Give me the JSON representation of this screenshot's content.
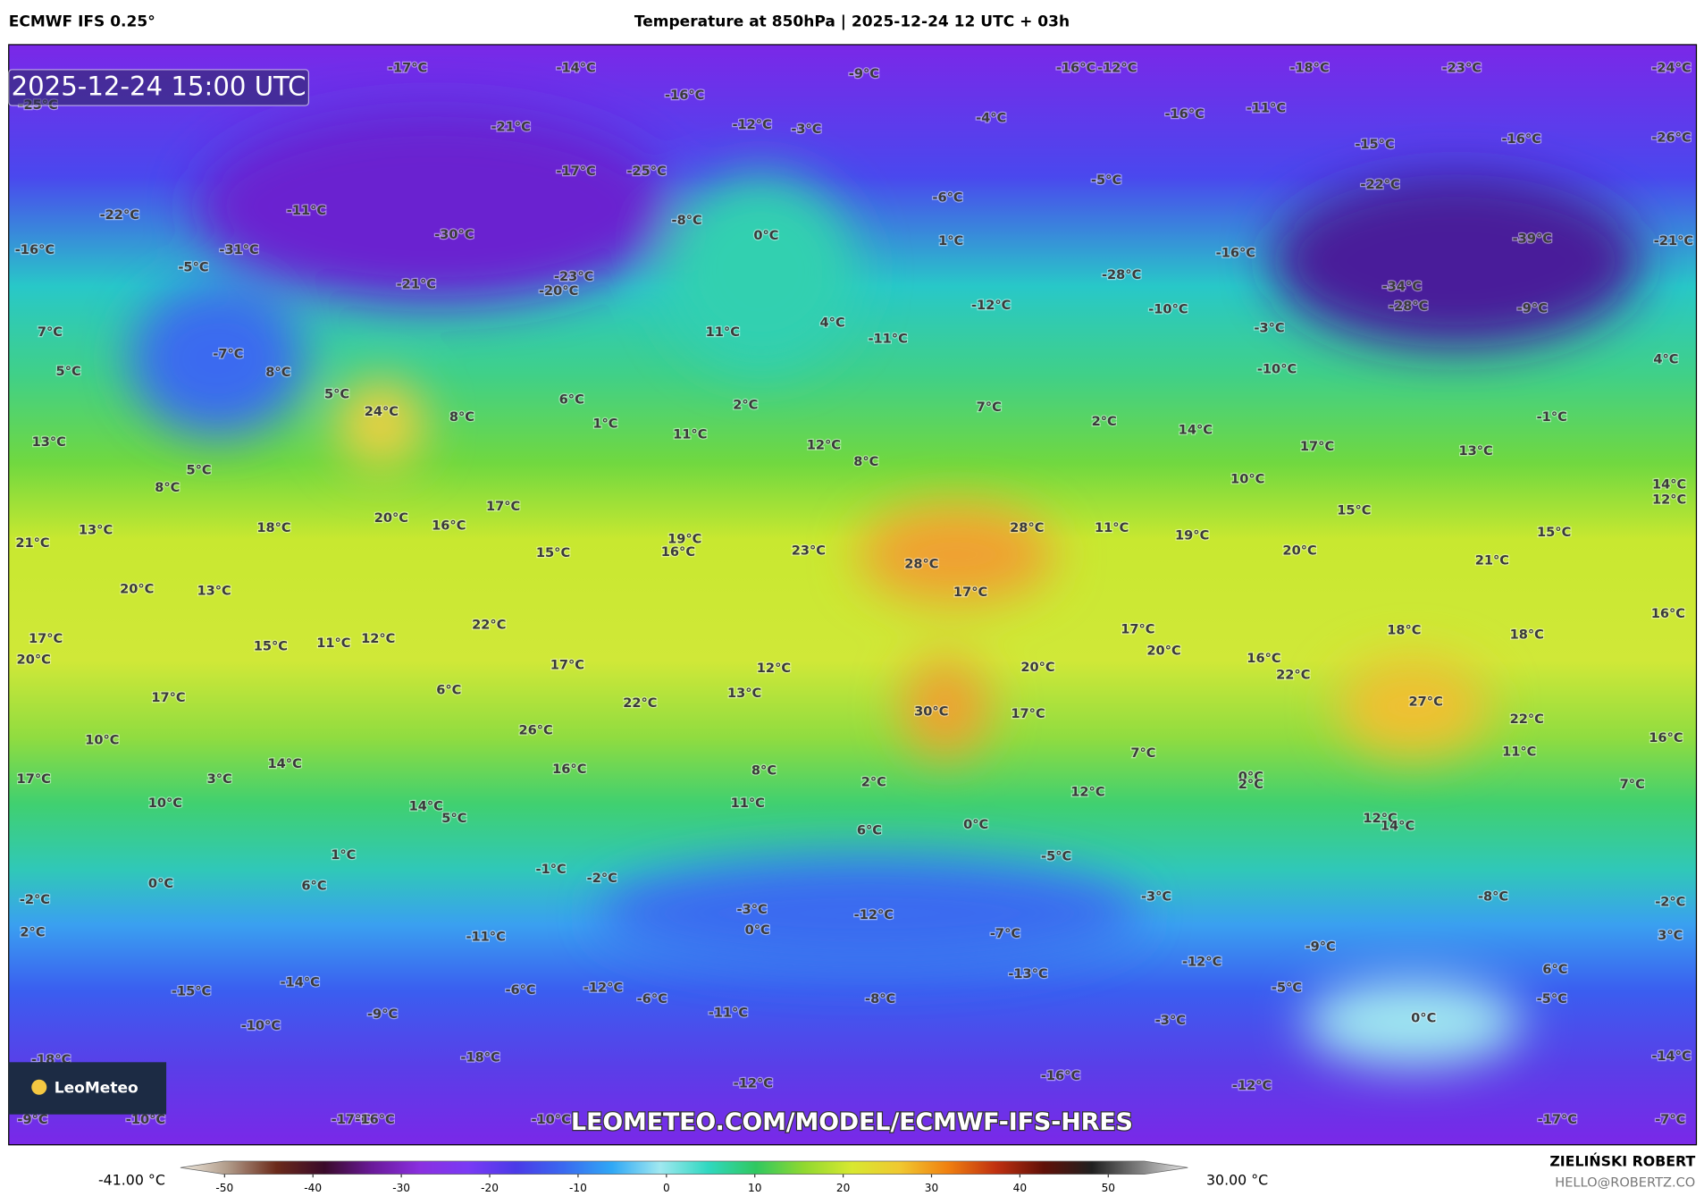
{
  "model": "ECMWF IFS 0.25°",
  "title": "Temperature at 850hPa | 2025-12-24 12 UTC + 03h",
  "valid_time": "2025-12-24 15:00 UTC",
  "watermark": "LEOMETEO.COM/MODEL/ECMWF-IFS-HRES",
  "logo": "LeoMeteo",
  "author": "ZIELIŃSKI ROBERT",
  "email": "HELLO@ROBERTZ.CO",
  "temperature_labels": [
    "-17°C",
    "-14°C",
    "-9°C",
    "-16°C",
    "-12°C",
    "-18°C",
    "-23°C",
    "-24°C",
    "-25°C",
    "-16°C",
    "-21°C",
    "-12°C",
    "-3°C",
    "-4°C",
    "-16°C",
    "-11°C",
    "-15°C",
    "-16°C",
    "-26°C",
    "-17°C",
    "-25°C",
    "-5°C",
    "-22°C",
    "-22°C",
    "-11°C",
    "-8°C",
    "0°C",
    "-6°C",
    "-16°C",
    "-31°C",
    "-30°C",
    "1°C",
    "-39°C",
    "-21°C",
    "-5°C",
    "-21°C",
    "-23°C",
    "-20°C",
    "-28°C",
    "-16°C",
    "-34°C",
    "-28°C",
    "-10°C",
    "-3°C",
    "-9°C",
    "7°C",
    "-7°C",
    "11°C",
    "4°C",
    "-11°C",
    "-12°C",
    "4°C",
    "5°C",
    "8°C",
    "5°C",
    "24°C",
    "8°C",
    "6°C",
    "1°C",
    "2°C",
    "7°C",
    "2°C",
    "-10°C",
    "-1°C",
    "13°C",
    "11°C",
    "12°C",
    "8°C",
    "14°C",
    "17°C",
    "13°C",
    "8°C",
    "5°C",
    "10°C",
    "14°C",
    "12°C",
    "15°C",
    "21°C",
    "13°C",
    "18°C",
    "20°C",
    "16°C",
    "17°C",
    "28°C",
    "11°C",
    "19°C",
    "15°C",
    "15°C",
    "19°C",
    "16°C",
    "23°C",
    "28°C",
    "20°C",
    "21°C",
    "20°C",
    "13°C",
    "17°C",
    "22°C",
    "17°C",
    "16°C",
    "17°C",
    "15°C",
    "11°C",
    "12°C",
    "20°C",
    "18°C",
    "18°C",
    "20°C",
    "17°C",
    "12°C",
    "20°C",
    "16°C",
    "22°C",
    "17°C",
    "6°C",
    "13°C",
    "22°C",
    "27°C",
    "10°C",
    "26°C",
    "30°C",
    "17°C",
    "22°C",
    "16°C",
    "17°C",
    "3°C",
    "14°C",
    "16°C",
    "8°C",
    "7°C",
    "11°C",
    "10°C",
    "2°C",
    "11°C",
    "12°C",
    "0°C",
    "2°C",
    "7°C",
    "14°C",
    "5°C",
    "12°C",
    "14°C",
    "1°C",
    "6°C",
    "0°C",
    "-5°C",
    "0°C",
    "6°C",
    "-1°C",
    "-2°C",
    "-2°C",
    "-3°C",
    "-3°C",
    "-8°C",
    "-2°C",
    "2°C",
    "-11°C",
    "-12°C",
    "0°C",
    "-7°C",
    "3°C",
    "-9°C",
    "-12°C",
    "-13°C",
    "6°C",
    "-15°C",
    "-14°C",
    "-6°C",
    "-12°C",
    "-6°C",
    "-8°C",
    "-5°C",
    "-5°C",
    "-11°C",
    "-3°C",
    "0°C",
    "-10°C",
    "-9°C",
    "-18°C",
    "-16°C",
    "-12°C",
    "-12°C",
    "-14°C",
    "-18°C",
    "-9°C",
    "-10°C",
    "-17°C",
    "-16°C",
    "-10°C",
    "-17°C",
    "-7°C"
  ],
  "colorbar": {
    "min_label": "-41.00 °C",
    "max_label": "30.00 °C",
    "lim": [
      -55,
      59
    ],
    "ticks": [
      -50,
      -40,
      -30,
      -20,
      -10,
      0,
      10,
      20,
      30,
      40,
      50
    ],
    "colors": [
      "#f0ebe0",
      "#b09a88",
      "#6b2a1a",
      "#3a0a2a",
      "#6a1a9a",
      "#8a30e0",
      "#7a3af5",
      "#4a3ae8",
      "#3a6af0",
      "#30a8f5",
      "#a0e8f0",
      "#30d8c0",
      "#30c860",
      "#90d830",
      "#d8e830",
      "#f0c830",
      "#f08010",
      "#c03010",
      "#601008",
      "#202020",
      "#808080",
      "#e8e8e8"
    ]
  }
}
